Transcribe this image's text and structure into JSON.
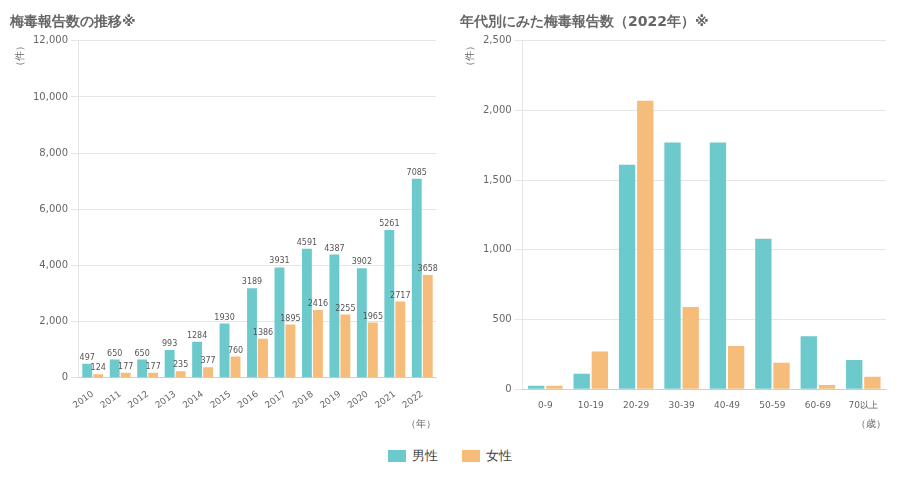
{
  "chart_data": [
    {
      "type": "bar",
      "title": "梅毒報告数の推移※",
      "xlabel": "（年）",
      "ylabel": "（件）",
      "categories": [
        2010,
        2011,
        2012,
        2013,
        2014,
        2015,
        2016,
        2017,
        2018,
        2019,
        2020,
        2021,
        2022
      ],
      "series": [
        {
          "name": "男性",
          "color": "#6DCACC",
          "values": [
            497,
            650,
            650,
            993,
            1284,
            1930,
            3189,
            3931,
            4591,
            4387,
            3902,
            5261,
            7085
          ]
        },
        {
          "name": "女性",
          "color": "#F5BC7A",
          "values": [
            124,
            177,
            177,
            235,
            377,
            760,
            1386,
            1895,
            2416,
            2255,
            1965,
            2717,
            3658
          ]
        }
      ],
      "ylim": [
        0,
        12000
      ],
      "yticks": [
        0,
        {
          "value": 2000,
          "label": "2,000"
        },
        {
          "value": 4000,
          "label": "4,000"
        },
        {
          "value": 6000,
          "label": "6,000"
        },
        {
          "value": 8000,
          "label": "8,000"
        },
        {
          "value": 10000,
          "label": "10,000"
        },
        {
          "value": 12000,
          "label": "12,000"
        }
      ],
      "grid": true,
      "data_labels": true,
      "legend": "bottom"
    },
    {
      "type": "bar",
      "title": "年代別にみた梅毒報告数（2022年）※",
      "xlabel": "（歳）",
      "ylabel": "（件）",
      "categories": [
        "0-9",
        "10-19",
        "20-29",
        "30-39",
        "40-49",
        "50-59",
        "60-69",
        "70以上"
      ],
      "series": [
        {
          "name": "男性",
          "color": "#6DCACC",
          "values": [
            25,
            110,
            1610,
            1770,
            1770,
            1080,
            380,
            210
          ]
        },
        {
          "name": "女性",
          "color": "#F5BC7A",
          "values": [
            25,
            270,
            2070,
            590,
            310,
            190,
            30,
            90
          ]
        }
      ],
      "ylim": [
        0,
        2500
      ],
      "yticks": [
        0,
        500,
        {
          "value": 1000,
          "label": "1,000"
        },
        {
          "value": 1500,
          "label": "1,500"
        },
        {
          "value": 2000,
          "label": "2,000"
        },
        {
          "value": 2500,
          "label": "2,500"
        }
      ],
      "grid": true,
      "data_labels": false,
      "legend": "bottom"
    }
  ]
}
